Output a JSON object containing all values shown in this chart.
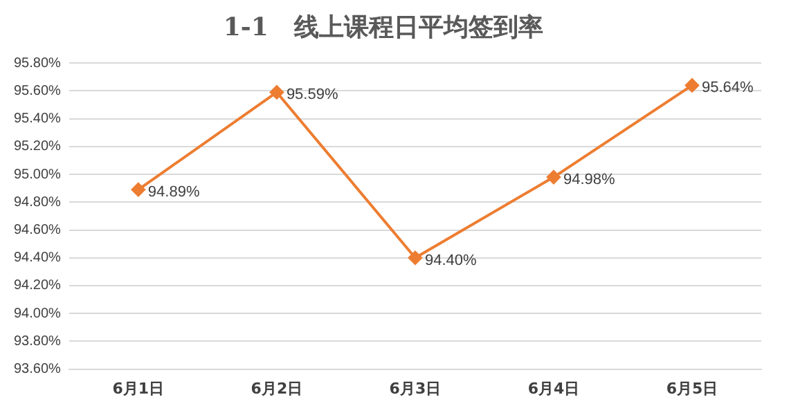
{
  "chart_data": {
    "type": "line",
    "title": "1-1   线上课程日平均签到率",
    "categories": [
      "6月1日",
      "6月2日",
      "6月3日",
      "6月4日",
      "6月5日"
    ],
    "series": [
      {
        "color": "#ed7d31",
        "values": [
          94.89,
          95.59,
          94.4,
          94.98,
          95.64
        ],
        "value_labels": [
          "94.89%",
          "95.59%",
          "94.40%",
          "94.98%",
          "95.64%"
        ]
      }
    ],
    "ylim": [
      93.6,
      95.8
    ],
    "yticks": [
      {
        "value": 93.6,
        "label": "93.60%"
      },
      {
        "value": 93.8,
        "label": "93.80%"
      },
      {
        "value": 94.0,
        "label": "94.00%"
      },
      {
        "value": 94.2,
        "label": "94.20%"
      },
      {
        "value": 94.4,
        "label": "94.40%"
      },
      {
        "value": 94.6,
        "label": "94.60%"
      },
      {
        "value": 94.8,
        "label": "94.80%"
      },
      {
        "value": 95.0,
        "label": "95.00%"
      },
      {
        "value": 95.2,
        "label": "95.20%"
      },
      {
        "value": 95.4,
        "label": "95.40%"
      },
      {
        "value": 95.6,
        "label": "95.60%"
      },
      {
        "value": 95.8,
        "label": "95.80%"
      }
    ],
    "grid": "y",
    "legend": false,
    "marker": "diamond",
    "line_style": "solid"
  }
}
